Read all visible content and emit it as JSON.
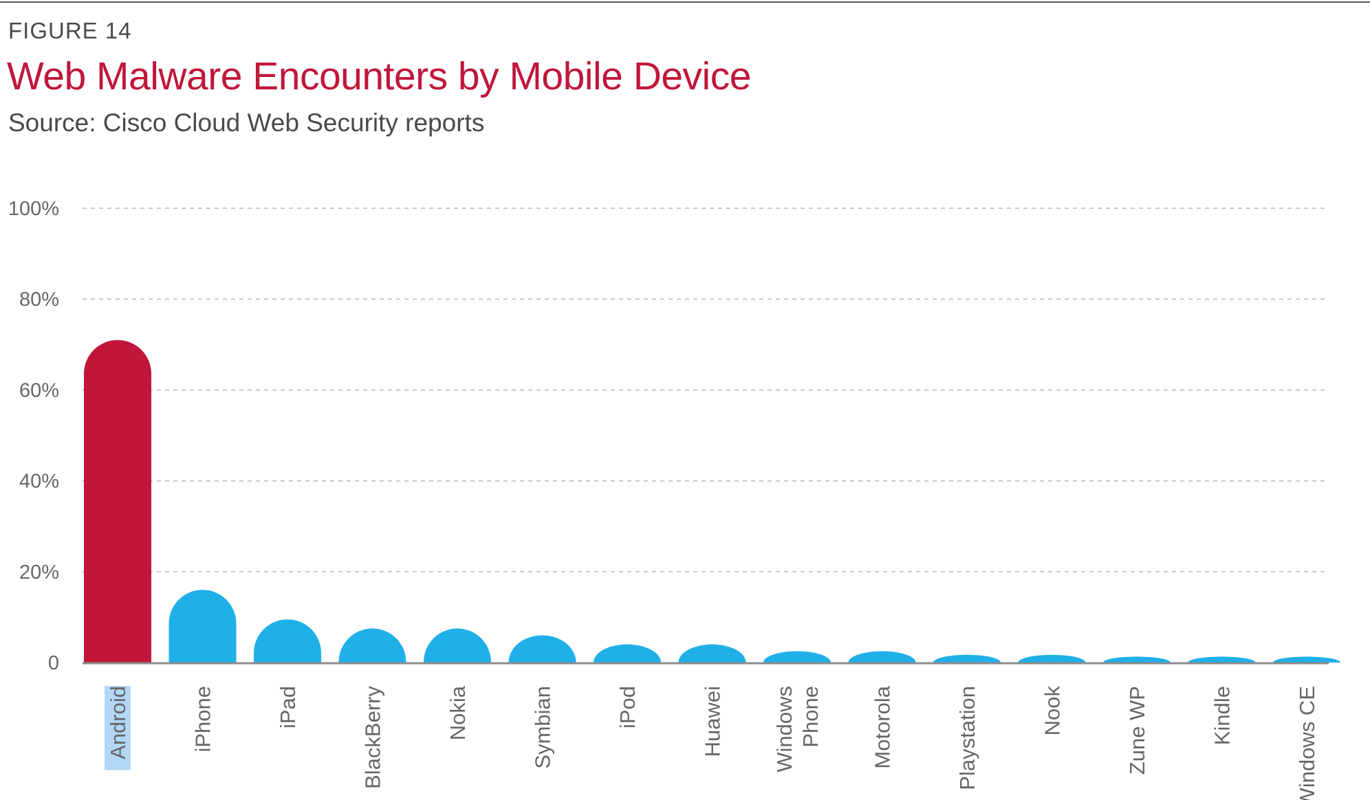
{
  "header": {
    "figure_label": "FIGURE 14",
    "title": "Web Malware Encounters by Mobile Device",
    "subtitle": "Source: Cisco Cloud Web Security reports"
  },
  "colors": {
    "highlight": "#c0163a",
    "bar": "#1fb0ea",
    "grid": "#b8b8b8",
    "axis": "#8c8c8c",
    "selection": "#b3d7f7"
  },
  "chart_data": {
    "type": "bar",
    "categories": [
      [
        "Android"
      ],
      [
        "iPhone"
      ],
      [
        "iPad"
      ],
      [
        "BlackBerry"
      ],
      [
        "Nokia"
      ],
      [
        "Symbian"
      ],
      [
        "iPod"
      ],
      [
        "Huawei"
      ],
      [
        "Windows",
        "Phone"
      ],
      [
        "Motorola"
      ],
      [
        "Playstation"
      ],
      [
        "Nook"
      ],
      [
        "Zune WP"
      ],
      [
        "Kindle"
      ],
      [
        "Windows CE"
      ]
    ],
    "values": [
      71,
      16,
      9.5,
      7.5,
      7.5,
      6,
      4,
      4,
      2.5,
      2.5,
      1.7,
      1.7,
      1.3,
      1.3,
      1.3
    ],
    "highlight_index": 0,
    "selected_index": 0,
    "y_ticks": [
      {
        "value": 0,
        "label": "0"
      },
      {
        "value": 20,
        "label": "20%"
      },
      {
        "value": 40,
        "label": "40%"
      },
      {
        "value": 60,
        "label": "60%"
      },
      {
        "value": 80,
        "label": "80%"
      },
      {
        "value": 100,
        "label": "100%"
      }
    ],
    "ylim": [
      0,
      100
    ],
    "grid": true,
    "legend": "none"
  }
}
